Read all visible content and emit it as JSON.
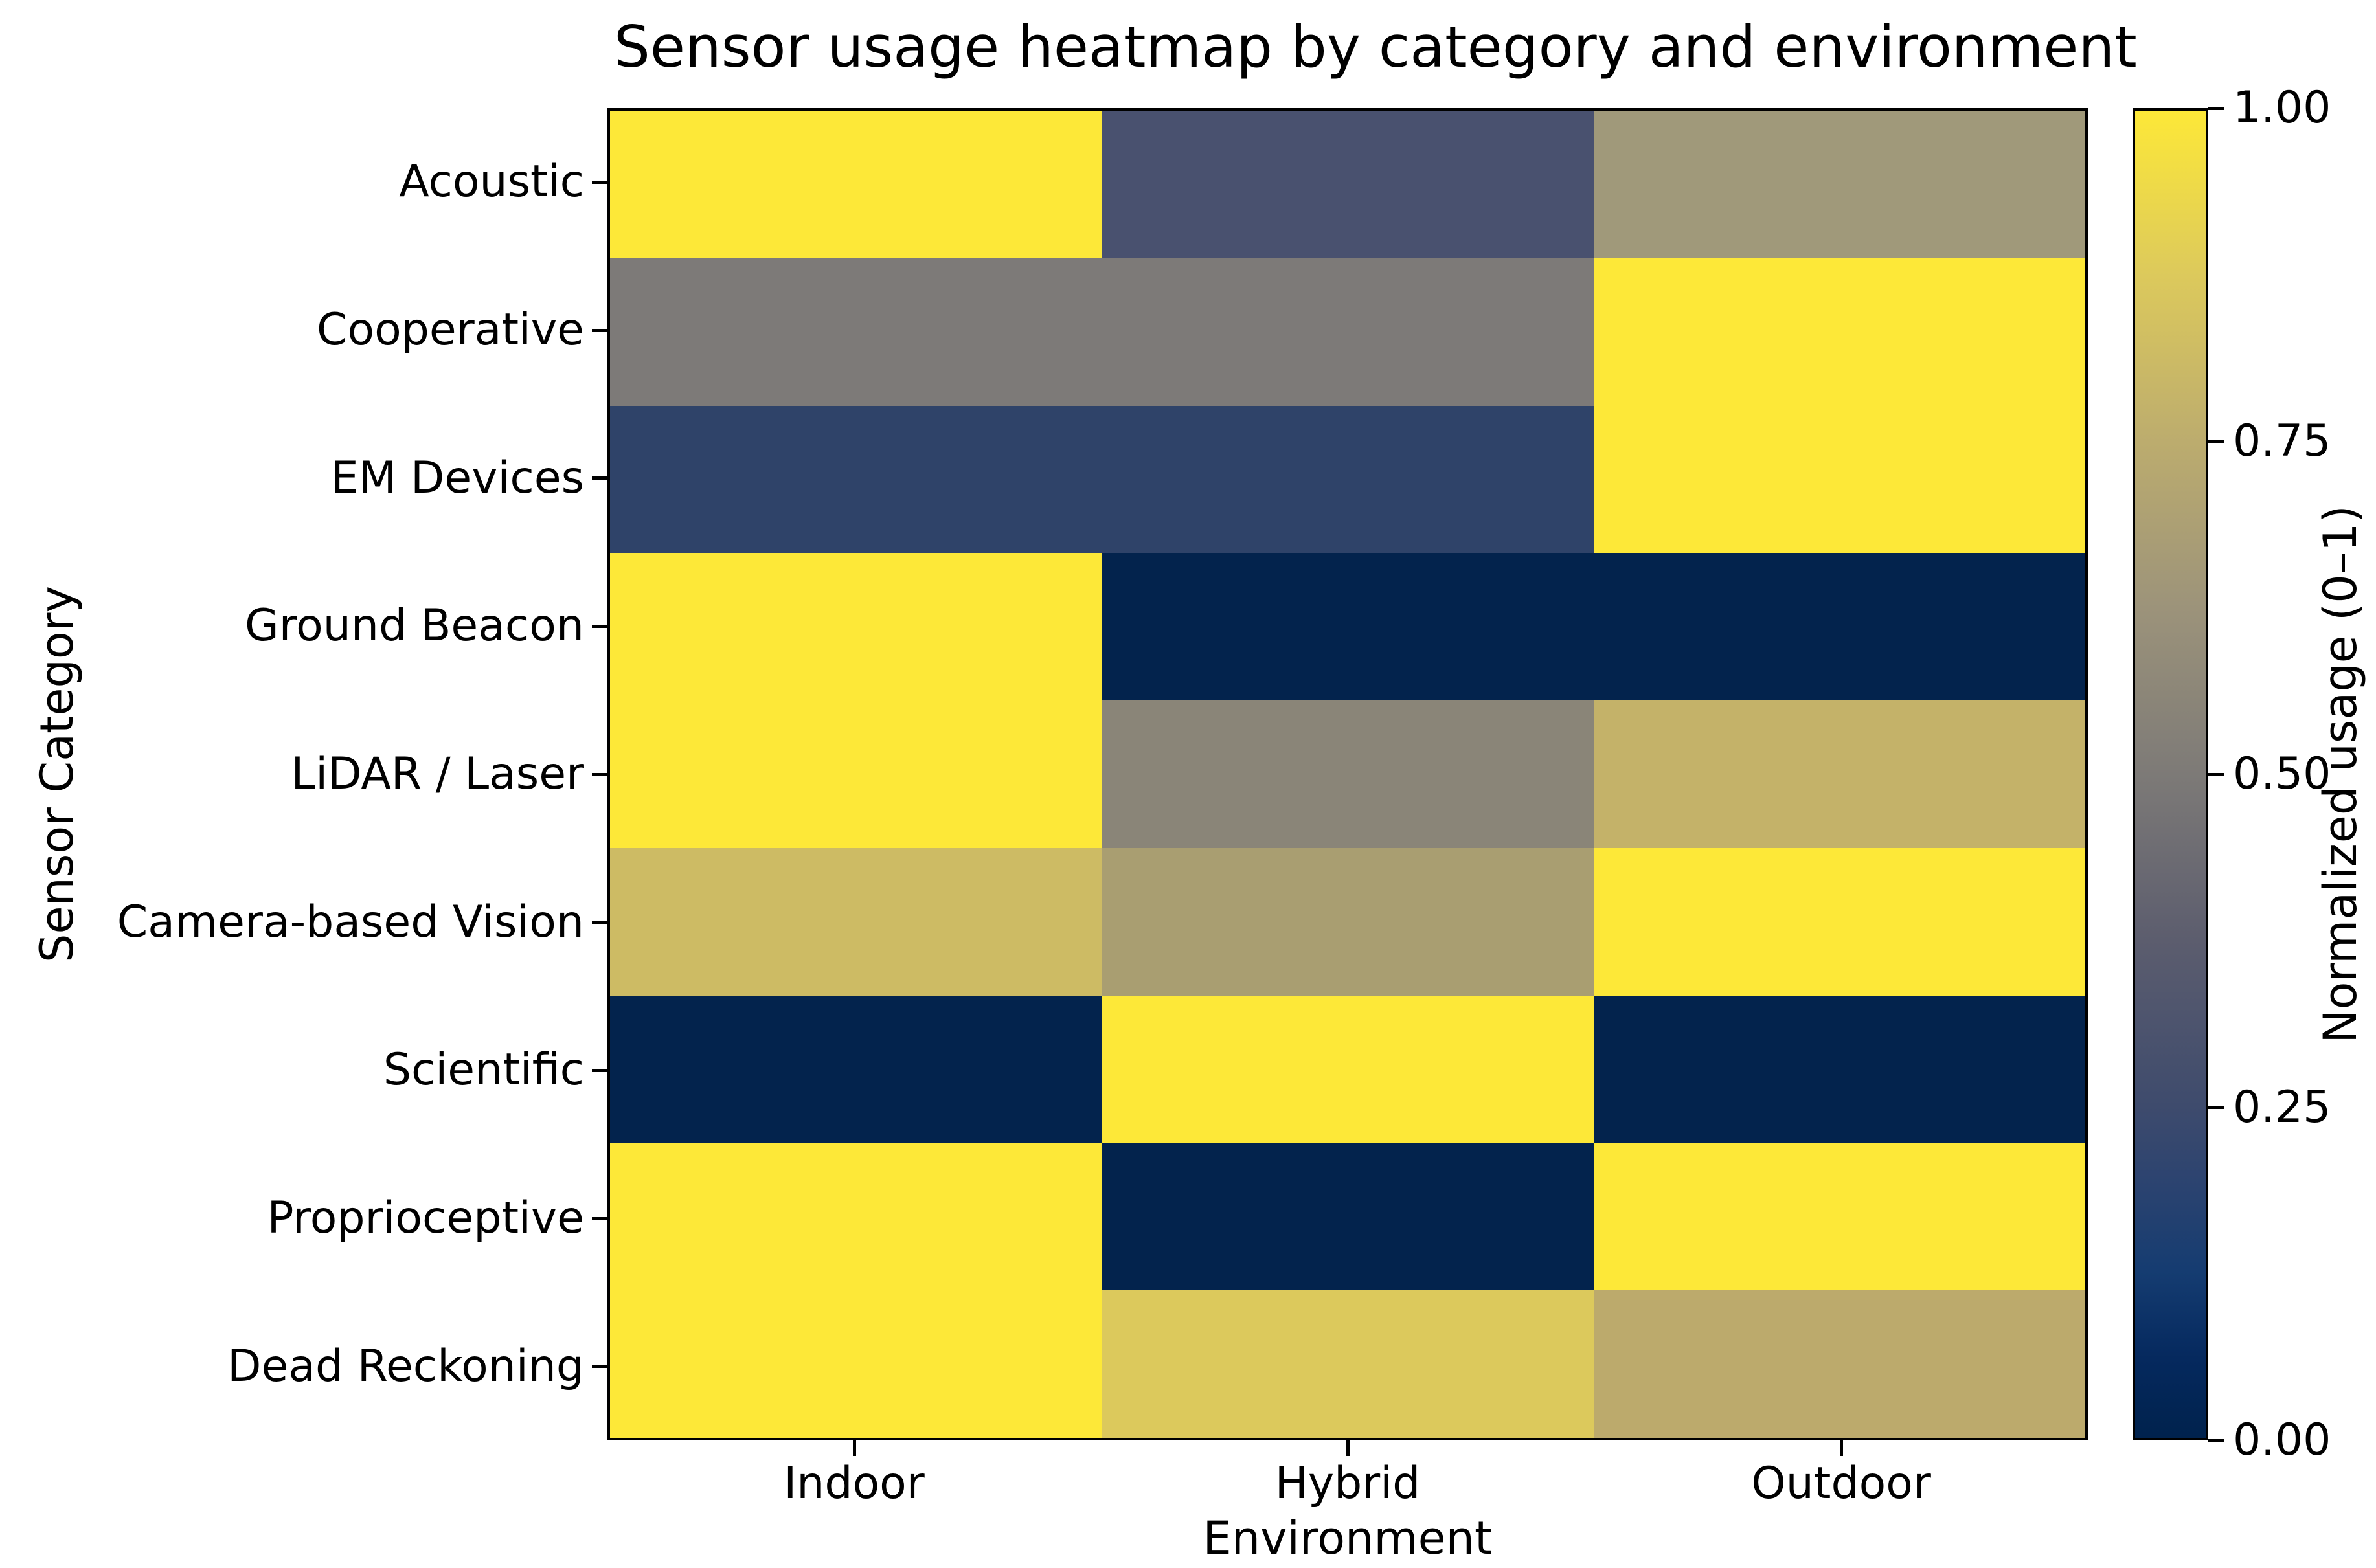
{
  "chart_data": {
    "type": "heatmap",
    "title": "Sensor usage heatmap by category and environment",
    "xlabel": "Environment",
    "ylabel": "Sensor Category",
    "x_categories": [
      "Indoor",
      "Hybrid",
      "Outdoor"
    ],
    "y_categories": [
      "Acoustic",
      "Cooperative",
      "EM Devices",
      "Ground Beacon",
      "LiDAR / Laser",
      "Camera-based Vision",
      "Scientific",
      "Proprioceptive",
      "Dead Reckoning"
    ],
    "values": [
      [
        1.0,
        0.3,
        0.65
      ],
      [
        0.5,
        0.5,
        1.0
      ],
      [
        0.2,
        0.2,
        1.0
      ],
      [
        1.0,
        0.0,
        0.0
      ],
      [
        1.0,
        0.55,
        0.8
      ],
      [
        0.82,
        0.68,
        1.0
      ],
      [
        0.0,
        1.0,
        0.0
      ],
      [
        1.0,
        0.0,
        1.0
      ],
      [
        1.0,
        0.87,
        0.75
      ]
    ],
    "cell_colors": [
      [
        "#FDE838",
        "#49516F",
        "#A0997A"
      ],
      [
        "#7D7A78",
        "#7D7A78",
        "#FDE838"
      ],
      [
        "#2F4369",
        "#2F4369",
        "#FDE838"
      ],
      [
        "#FDE838",
        "#03234D",
        "#03234D"
      ],
      [
        "#FDE838",
        "#8A8578",
        "#C4B269"
      ],
      [
        "#CDBB64",
        "#A99E71",
        "#FDE838"
      ],
      [
        "#03234D",
        "#FDE838",
        "#03234D"
      ],
      [
        "#FDE838",
        "#03234D",
        "#FDE838"
      ],
      [
        "#FDE838",
        "#DCC95C",
        "#BCAA6C"
      ]
    ],
    "colormap": "cividis",
    "vmin": 0.0,
    "vmax": 1.0,
    "grid": false,
    "axis_color": "#000000",
    "background_color": "#FFFFFF",
    "colorbar": {
      "label": "Normalized usage (0–1)",
      "tick_labels": [
        "1.00",
        "0.75",
        "0.50",
        "0.25",
        "0.00"
      ],
      "tick_values": [
        1.0,
        0.75,
        0.5,
        0.25,
        0.0
      ],
      "gradient_stops": [
        {
          "pos": 0.0,
          "color": "#00224D"
        },
        {
          "pos": 0.06,
          "color": "#05295E"
        },
        {
          "pos": 0.125,
          "color": "#153C71"
        },
        {
          "pos": 0.19,
          "color": "#2B4370"
        },
        {
          "pos": 0.25,
          "color": "#3E4B6D"
        },
        {
          "pos": 0.375,
          "color": "#5C5D6E"
        },
        {
          "pos": 0.5,
          "color": "#7D7A77"
        },
        {
          "pos": 0.625,
          "color": "#9C937A"
        },
        {
          "pos": 0.75,
          "color": "#BCAC6E"
        },
        {
          "pos": 0.875,
          "color": "#DCC95C"
        },
        {
          "pos": 1.0,
          "color": "#FDE838"
        }
      ]
    }
  }
}
